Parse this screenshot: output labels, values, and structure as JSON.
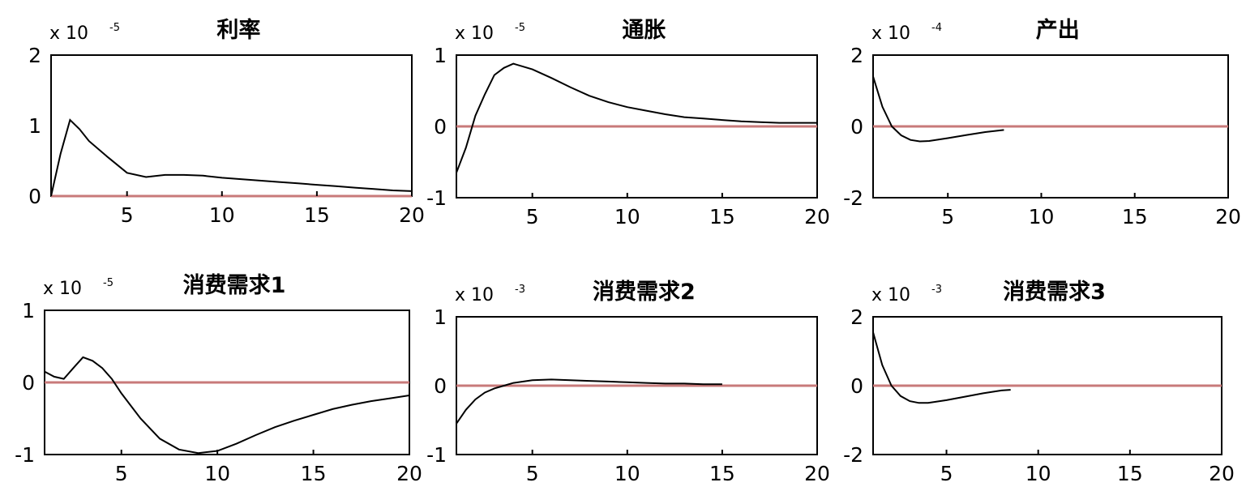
{
  "colors": {
    "zero_line": "#c87a7a",
    "curve": "#000000",
    "frame": "#000000"
  },
  "chart_data": [
    {
      "type": "line",
      "title": "利率",
      "exponent_label": "x 10",
      "exponent_power": "-5",
      "xlim": [
        1,
        20
      ],
      "ylim": [
        0,
        2
      ],
      "xticks": [
        "5",
        "10",
        "15",
        "20"
      ],
      "yticks": [
        "0",
        "1",
        "2"
      ],
      "zero_line": 0,
      "x": [
        1,
        1.5,
        2,
        2.5,
        3,
        4,
        5,
        6,
        7,
        8,
        9,
        10,
        11,
        12,
        13,
        14,
        15,
        16,
        17,
        18,
        19,
        20
      ],
      "y": [
        0.0,
        0.6,
        1.08,
        0.95,
        0.78,
        0.55,
        0.33,
        0.27,
        0.3,
        0.3,
        0.29,
        0.26,
        0.24,
        0.22,
        0.2,
        0.18,
        0.16,
        0.14,
        0.12,
        0.1,
        0.08,
        0.07
      ]
    },
    {
      "type": "line",
      "title": "通胀",
      "exponent_label": "x 10",
      "exponent_power": "-5",
      "xlim": [
        1,
        20
      ],
      "ylim": [
        -1,
        1
      ],
      "xticks": [
        "5",
        "10",
        "15",
        "20"
      ],
      "yticks": [
        "-1",
        "0",
        "1"
      ],
      "zero_line": 0,
      "x": [
        1,
        1.5,
        2,
        2.5,
        3,
        3.5,
        4,
        5,
        6,
        7,
        8,
        9,
        10,
        11,
        12,
        13,
        14,
        15,
        16,
        17,
        18,
        19,
        20
      ],
      "y": [
        -0.65,
        -0.3,
        0.15,
        0.45,
        0.72,
        0.82,
        0.88,
        0.8,
        0.68,
        0.55,
        0.43,
        0.34,
        0.27,
        0.22,
        0.17,
        0.13,
        0.11,
        0.09,
        0.07,
        0.06,
        0.05,
        0.05,
        0.05
      ]
    },
    {
      "type": "line",
      "title": "产出",
      "exponent_label": "x 10",
      "exponent_power": "-4",
      "xlim": [
        1,
        20
      ],
      "ylim": [
        -2,
        2
      ],
      "xticks": [
        "5",
        "10",
        "15",
        "20"
      ],
      "yticks": [
        "-2",
        "0",
        "2"
      ],
      "zero_line": 0,
      "x": [
        1,
        1.5,
        2,
        2.5,
        3,
        3.5,
        4,
        5,
        6,
        7,
        8
      ],
      "y": [
        1.4,
        0.55,
        0.0,
        -0.25,
        -0.38,
        -0.42,
        -0.41,
        -0.33,
        -0.24,
        -0.16,
        -0.1
      ]
    },
    {
      "type": "line",
      "title": "消费需求1",
      "exponent_label": "x 10",
      "exponent_power": "-5",
      "xlim": [
        1,
        20
      ],
      "ylim": [
        -1,
        1
      ],
      "xticks": [
        "5",
        "10",
        "15",
        "20"
      ],
      "yticks": [
        "-1",
        "0",
        "1"
      ],
      "zero_line": 0,
      "x": [
        1,
        1.5,
        2,
        2.5,
        3,
        3.5,
        4,
        4.5,
        5,
        6,
        7,
        8,
        9,
        10,
        11,
        12,
        13,
        14,
        15,
        16,
        17,
        18,
        19,
        20
      ],
      "y": [
        0.15,
        0.08,
        0.05,
        0.2,
        0.35,
        0.3,
        0.2,
        0.05,
        -0.15,
        -0.5,
        -0.78,
        -0.93,
        -0.98,
        -0.95,
        -0.85,
        -0.73,
        -0.62,
        -0.53,
        -0.45,
        -0.37,
        -0.31,
        -0.26,
        -0.22,
        -0.18
      ]
    },
    {
      "type": "line",
      "title": "消费需求2",
      "exponent_label": "x 10",
      "exponent_power": "-3",
      "xlim": [
        1,
        20
      ],
      "ylim": [
        -1,
        1
      ],
      "xticks": [
        "5",
        "10",
        "15",
        "20"
      ],
      "yticks": [
        "-1",
        "0",
        "1"
      ],
      "zero_line": 0,
      "x": [
        1,
        1.5,
        2,
        2.5,
        3,
        3.5,
        4,
        5,
        6,
        7,
        8,
        9,
        10,
        11,
        12,
        13,
        14,
        15
      ],
      "y": [
        -0.55,
        -0.35,
        -0.2,
        -0.1,
        -0.04,
        0.0,
        0.04,
        0.08,
        0.09,
        0.08,
        0.07,
        0.06,
        0.05,
        0.04,
        0.03,
        0.03,
        0.02,
        0.02
      ]
    },
    {
      "type": "line",
      "title": "消费需求3",
      "exponent_label": "x 10",
      "exponent_power": "-3",
      "xlim": [
        1,
        20
      ],
      "ylim": [
        -2,
        2
      ],
      "xticks": [
        "5",
        "10",
        "15",
        "20"
      ],
      "yticks": [
        "-2",
        "0",
        "2"
      ],
      "zero_line": 0,
      "x": [
        1,
        1.5,
        2,
        2.5,
        3,
        3.5,
        4,
        5,
        6,
        7,
        8,
        8.5
      ],
      "y": [
        1.55,
        0.6,
        0.0,
        -0.3,
        -0.45,
        -0.5,
        -0.5,
        -0.42,
        -0.32,
        -0.22,
        -0.14,
        -0.12
      ]
    }
  ]
}
